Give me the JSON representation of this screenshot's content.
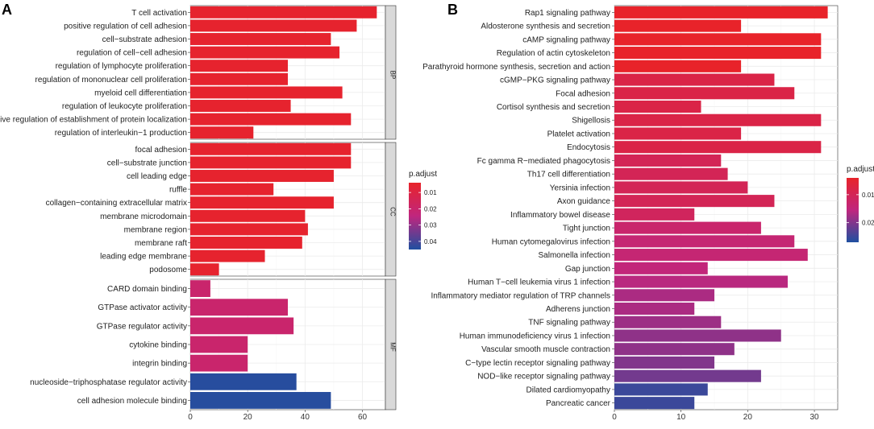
{
  "colors": {
    "low": "#1f4fa0",
    "mid": "#c0267e",
    "high": "#e8232a"
  },
  "chart_data": [
    {
      "panel_label": "A",
      "type": "bar",
      "orientation": "horizontal",
      "xlabel": "",
      "xlim": [
        0,
        68
      ],
      "xticks": [
        0,
        20,
        40,
        60
      ],
      "color_variable": "p.adjust",
      "legend": {
        "title": "p.adjust",
        "range": [
          0.045,
          0.004
        ],
        "ticks": [
          0.01,
          0.02,
          0.03,
          0.04
        ],
        "tick_labels": [
          "0.01",
          "0.02",
          "0.03",
          "0.04"
        ]
      },
      "facets": [
        {
          "name": "BP",
          "items": [
            {
              "label": "T cell activation",
              "value": 65,
              "p": 0.005
            },
            {
              "label": "positive regulation of cell adhesion",
              "value": 58,
              "p": 0.005
            },
            {
              "label": "cell−substrate adhesion",
              "value": 49,
              "p": 0.005
            },
            {
              "label": "regulation of cell−cell adhesion",
              "value": 52,
              "p": 0.005
            },
            {
              "label": "regulation of lymphocyte proliferation",
              "value": 34,
              "p": 0.005
            },
            {
              "label": "regulation of mononuclear cell proliferation",
              "value": 34,
              "p": 0.005
            },
            {
              "label": "myeloid cell differentiation",
              "value": 53,
              "p": 0.005
            },
            {
              "label": "regulation of leukocyte proliferation",
              "value": 35,
              "p": 0.005
            },
            {
              "label": "positive regulation of establishment of protein localization",
              "value": 56,
              "p": 0.005
            },
            {
              "label": "regulation of interleukin−1 production",
              "value": 22,
              "p": 0.005
            }
          ]
        },
        {
          "name": "CC",
          "items": [
            {
              "label": "focal adhesion",
              "value": 56,
              "p": 0.005
            },
            {
              "label": "cell−substrate junction",
              "value": 56,
              "p": 0.005
            },
            {
              "label": "cell leading edge",
              "value": 50,
              "p": 0.005
            },
            {
              "label": "ruffle",
              "value": 29,
              "p": 0.005
            },
            {
              "label": "collagen−containing extracellular matrix",
              "value": 50,
              "p": 0.005
            },
            {
              "label": "membrane microdomain",
              "value": 40,
              "p": 0.005
            },
            {
              "label": "membrane region",
              "value": 41,
              "p": 0.005
            },
            {
              "label": "membrane raft",
              "value": 39,
              "p": 0.005
            },
            {
              "label": "leading edge membrane",
              "value": 26,
              "p": 0.005
            },
            {
              "label": "podosome",
              "value": 10,
              "p": 0.005
            }
          ]
        },
        {
          "name": "MF",
          "items": [
            {
              "label": "CARD domain binding",
              "value": 7,
              "p": 0.02
            },
            {
              "label": "GTPase activator activity",
              "value": 34,
              "p": 0.02
            },
            {
              "label": "GTPase regulator activity",
              "value": 36,
              "p": 0.02
            },
            {
              "label": "cytokine binding",
              "value": 20,
              "p": 0.02
            },
            {
              "label": "integrin binding",
              "value": 20,
              "p": 0.02
            },
            {
              "label": "nucleoside−triphosphatase regulator activity",
              "value": 37,
              "p": 0.044
            },
            {
              "label": "cell adhesion molecule binding",
              "value": 49,
              "p": 0.044
            }
          ]
        }
      ]
    },
    {
      "panel_label": "B",
      "type": "bar",
      "orientation": "horizontal",
      "xlabel": "",
      "xlim": [
        0,
        33.5
      ],
      "xticks": [
        0,
        10,
        20,
        30
      ],
      "color_variable": "p.adjust",
      "legend": {
        "title": "p.adjust",
        "range": [
          0.027,
          0.004
        ],
        "ticks": [
          0.01,
          0.02
        ],
        "tick_labels": [
          "0.01",
          "0.02"
        ]
      },
      "facets": [
        {
          "name": "",
          "items": [
            {
              "label": "Rap1 signaling pathway",
              "value": 32,
              "p": 0.004
            },
            {
              "label": "Aldosterone synthesis and secretion",
              "value": 19,
              "p": 0.004
            },
            {
              "label": "cAMP signaling pathway",
              "value": 31,
              "p": 0.004
            },
            {
              "label": "Regulation of actin cytoskeleton",
              "value": 31,
              "p": 0.004
            },
            {
              "label": "Parathyroid hormone synthesis, secretion and action",
              "value": 19,
              "p": 0.004
            },
            {
              "label": "cGMP−PKG signaling pathway",
              "value": 24,
              "p": 0.008
            },
            {
              "label": "Focal adhesion",
              "value": 27,
              "p": 0.008
            },
            {
              "label": "Cortisol synthesis and secretion",
              "value": 13,
              "p": 0.008
            },
            {
              "label": "Shigellosis",
              "value": 31,
              "p": 0.008
            },
            {
              "label": "Platelet activation",
              "value": 19,
              "p": 0.008
            },
            {
              "label": "Endocytosis",
              "value": 31,
              "p": 0.008
            },
            {
              "label": "Fc gamma R−mediated phagocytosis",
              "value": 16,
              "p": 0.01
            },
            {
              "label": "Th17 cell differentiation",
              "value": 17,
              "p": 0.01
            },
            {
              "label": "Yersinia infection",
              "value": 20,
              "p": 0.01
            },
            {
              "label": "Axon guidance",
              "value": 24,
              "p": 0.01
            },
            {
              "label": "Inflammatory bowel disease",
              "value": 12,
              "p": 0.011
            },
            {
              "label": "Tight junction",
              "value": 22,
              "p": 0.013
            },
            {
              "label": "Human cytomegalovirus infection",
              "value": 27,
              "p": 0.014
            },
            {
              "label": "Salmonella infection",
              "value": 29,
              "p": 0.014
            },
            {
              "label": "Gap junction",
              "value": 14,
              "p": 0.015
            },
            {
              "label": "Human T−cell leukemia virus 1 infection",
              "value": 26,
              "p": 0.016
            },
            {
              "label": "Inflammatory mediator regulation of TRP channels",
              "value": 15,
              "p": 0.017
            },
            {
              "label": "Adherens junction",
              "value": 12,
              "p": 0.017
            },
            {
              "label": "TNF signaling pathway",
              "value": 16,
              "p": 0.018
            },
            {
              "label": "Human immunodeficiency virus 1 infection",
              "value": 25,
              "p": 0.019
            },
            {
              "label": "Vascular smooth muscle contraction",
              "value": 18,
              "p": 0.019
            },
            {
              "label": "C−type lectin receptor signaling pathway",
              "value": 15,
              "p": 0.02
            },
            {
              "label": "NOD−like receptor signaling pathway",
              "value": 22,
              "p": 0.021
            },
            {
              "label": "Dilated cardiomyopathy",
              "value": 14,
              "p": 0.025
            },
            {
              "label": "Pancreatic cancer",
              "value": 12,
              "p": 0.025
            }
          ]
        }
      ]
    }
  ]
}
